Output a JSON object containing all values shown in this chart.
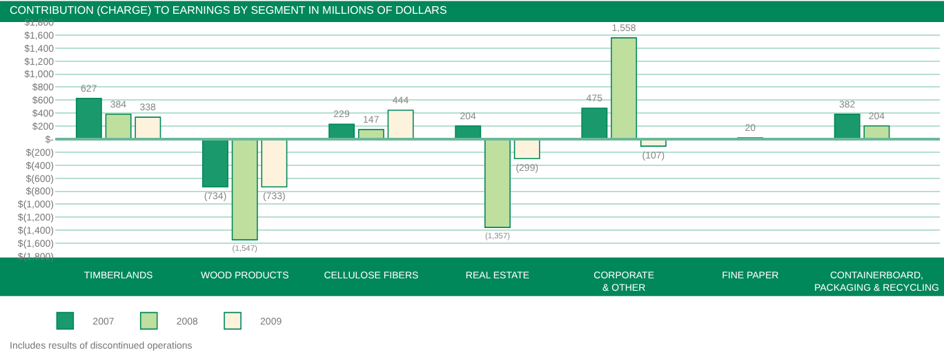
{
  "chart_data": {
    "type": "bar",
    "title": "CONTRIBUTION (CHARGE) TO EARNINGS BY SEGMENT IN MILLIONS OF DOLLARS",
    "categories": [
      "TIMBERLANDS",
      "WOOD PRODUCTS",
      "CELLULOSE FIBERS",
      "REAL ESTATE",
      "CORPORATE\n& OTHER",
      "FINE PAPER",
      "CONTAINERBOARD,\nPACKAGING & RECYCLING"
    ],
    "series": [
      {
        "name": "2007",
        "color": "#1a9a6c",
        "values": [
          627,
          -734,
          229,
          204,
          475,
          null,
          382
        ],
        "value_labels": [
          "627",
          "(734)",
          "229",
          "204",
          "475",
          null,
          "382"
        ]
      },
      {
        "name": "2008",
        "color": "#bfdf9f",
        "values": [
          384,
          -1547,
          147,
          -1357,
          1558,
          20,
          204
        ],
        "value_labels": [
          "384",
          "(1,547)",
          "147",
          "(1,357)",
          "1,558",
          "20",
          "204"
        ]
      },
      {
        "name": "2009",
        "color": "#fdf3dc",
        "values": [
          338,
          -733,
          444,
          -299,
          -107,
          null,
          null
        ],
        "value_labels": [
          "338",
          "(733)",
          "444",
          "(299)",
          "(107)",
          null,
          null
        ]
      }
    ],
    "ylim": [
      -1800,
      1800
    ],
    "yticks": [
      {
        "value": 1800,
        "label": "$1,800"
      },
      {
        "value": 1600,
        "label": "$1,600"
      },
      {
        "value": 1400,
        "label": "$1,400"
      },
      {
        "value": 1200,
        "label": "$1,200"
      },
      {
        "value": 1000,
        "label": "$1,000"
      },
      {
        "value": 800,
        "label": "$800"
      },
      {
        "value": 600,
        "label": "$600"
      },
      {
        "value": 400,
        "label": "$400"
      },
      {
        "value": 200,
        "label": "$200"
      },
      {
        "value": 0,
        "label": "$-"
      },
      {
        "value": -200,
        "label": "$(200)"
      },
      {
        "value": -400,
        "label": "$(400)"
      },
      {
        "value": -600,
        "label": "$(600)"
      },
      {
        "value": -800,
        "label": "$(800)"
      },
      {
        "value": -1000,
        "label": "$(1,000)"
      },
      {
        "value": -1200,
        "label": "$(1,200)"
      },
      {
        "value": -1400,
        "label": "$(1,400)"
      },
      {
        "value": -1600,
        "label": "$(1,600)"
      },
      {
        "value": -1800,
        "label": "$(1,800)"
      }
    ],
    "grid": "y",
    "ref_lines": [
      {
        "axis": "y",
        "value": 0,
        "color": "#6ab89a"
      }
    ],
    "legend": "bottom left",
    "annotations": [
      "Includes results of discontinued operations"
    ]
  }
}
